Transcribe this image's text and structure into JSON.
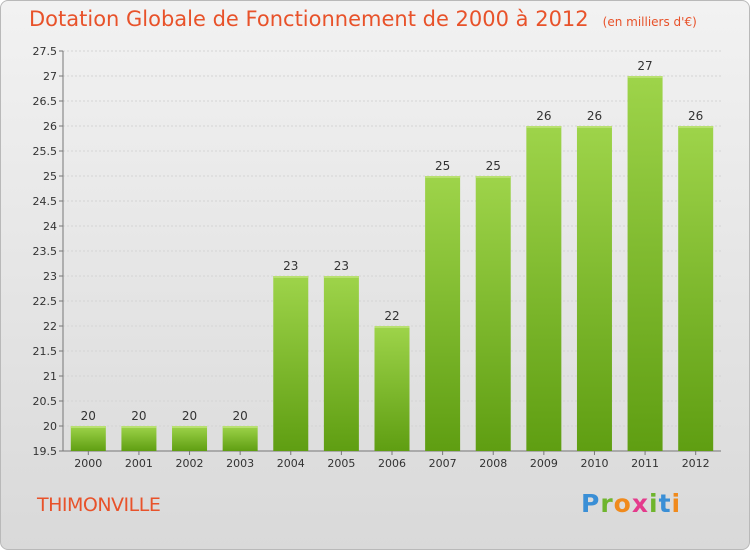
{
  "title": "Dotation Globale de Fonctionnement de 2000 à 2012",
  "unit": "(en milliers d'€)",
  "commune": "THIMONVILLE",
  "logo": "Proxiti",
  "colors": {
    "title": "#e8522a",
    "bar_light": "#9ed44a",
    "bar_dark": "#5f9e12"
  },
  "chart_data": {
    "type": "bar",
    "categories": [
      "2000",
      "2001",
      "2002",
      "2003",
      "2004",
      "2005",
      "2006",
      "2007",
      "2008",
      "2009",
      "2010",
      "2011",
      "2012"
    ],
    "values": [
      20,
      20,
      20,
      20,
      23,
      23,
      22,
      25,
      25,
      26,
      26,
      27,
      26
    ],
    "data_labels": [
      "20",
      "20",
      "20",
      "20",
      "23",
      "23",
      "22",
      "25",
      "25",
      "26",
      "26",
      "27",
      "26"
    ],
    "y_ticks": [
      "19.5",
      "20",
      "20.5",
      "21",
      "21.5",
      "22",
      "22.5",
      "23",
      "23.5",
      "24",
      "24.5",
      "25",
      "25.5",
      "26",
      "26.5",
      "27",
      "27.5"
    ],
    "ylim": [
      19.5,
      27.5
    ],
    "grid": true,
    "legend": "none"
  }
}
